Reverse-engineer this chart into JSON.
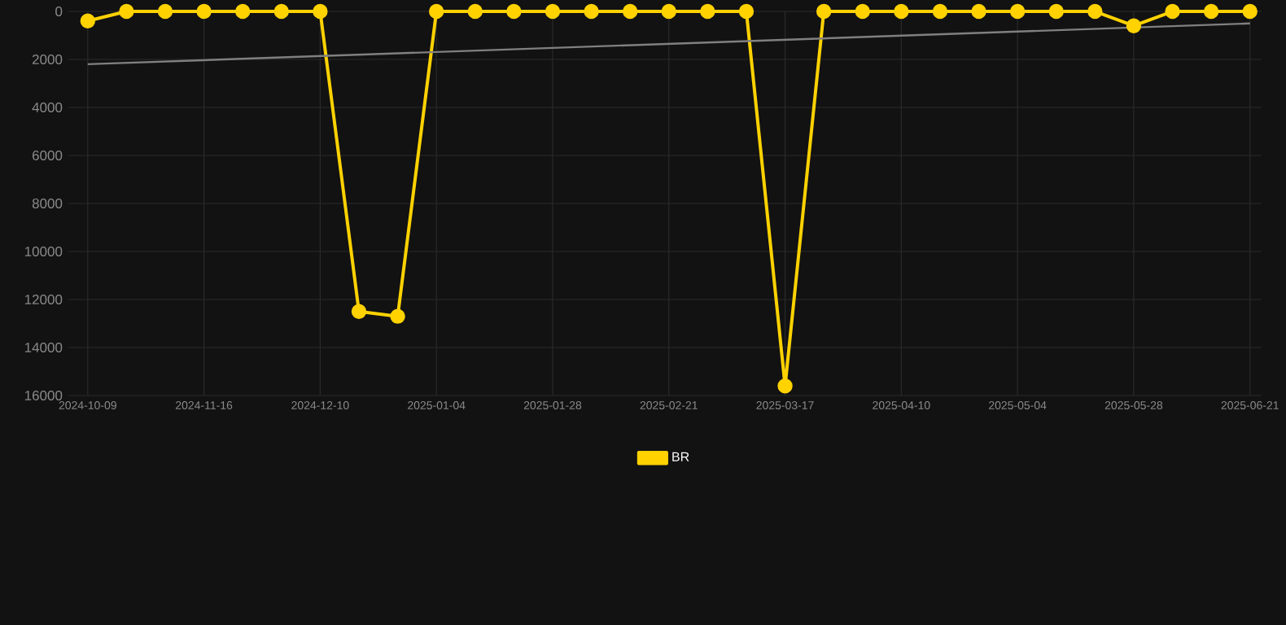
{
  "chart_data": {
    "type": "line",
    "categories": [
      "2024-10-09",
      null,
      null,
      "2024-11-16",
      null,
      null,
      "2024-12-10",
      null,
      null,
      "2025-01-04",
      null,
      null,
      "2025-01-28",
      null,
      null,
      "2025-02-21",
      null,
      null,
      "2025-03-17",
      null,
      null,
      "2025-04-10",
      null,
      null,
      "2025-05-04",
      null,
      null,
      "2025-05-28",
      null,
      null,
      "2025-06-21"
    ],
    "series": [
      {
        "name": "BR",
        "color": "#ffd200",
        "marker": "circle",
        "values": [
          400,
          0,
          0,
          0,
          0,
          0,
          0,
          12500,
          12700,
          0,
          0,
          0,
          0,
          0,
          0,
          0,
          0,
          0,
          15600,
          0,
          0,
          0,
          0,
          0,
          0,
          0,
          0,
          600,
          0,
          0,
          0
        ]
      },
      {
        "color": "#808080",
        "marker": "none",
        "values": [
          2200,
          null,
          null,
          null,
          null,
          null,
          null,
          null,
          null,
          null,
          null,
          null,
          null,
          null,
          null,
          null,
          null,
          null,
          null,
          null,
          null,
          null,
          null,
          null,
          null,
          null,
          null,
          null,
          null,
          null,
          500
        ]
      }
    ],
    "ylim": [
      16000,
      0
    ],
    "yticks": [
      0,
      2000,
      4000,
      6000,
      8000,
      10000,
      12000,
      14000,
      16000
    ],
    "grid": true,
    "legend": "bottom"
  }
}
